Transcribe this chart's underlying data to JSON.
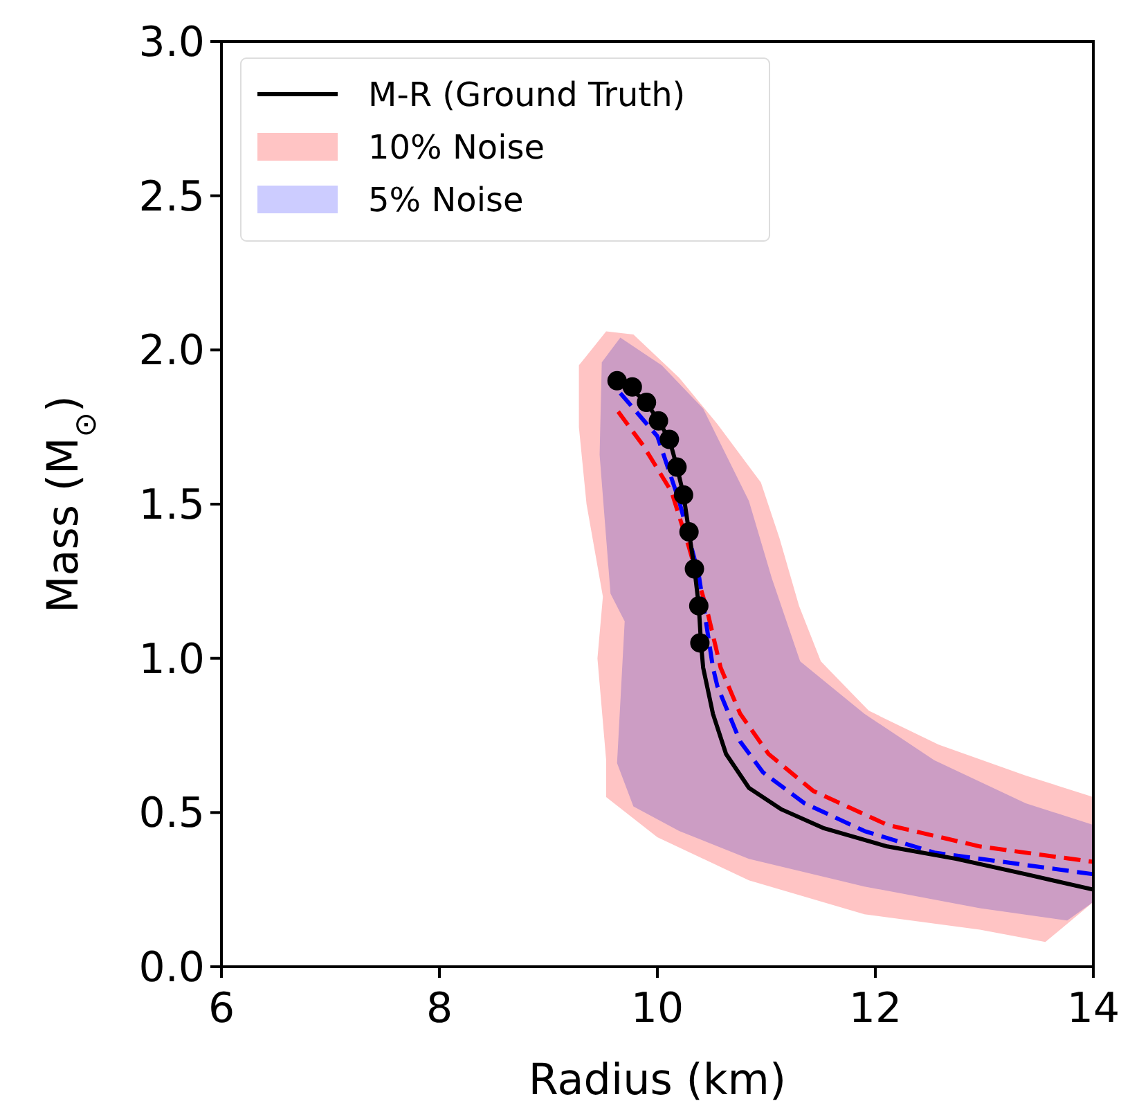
{
  "chart_data": {
    "type": "line",
    "xlabel": "Radius (km)",
    "ylabel": "Mass (M$_{⊙}$)",
    "xlim": [
      6,
      14
    ],
    "ylim": [
      0,
      3
    ],
    "xticks": [
      6,
      8,
      10,
      12,
      14
    ],
    "yticks": [
      {
        "value": 0,
        "label": "0.0"
      },
      {
        "value": 0.5,
        "label": "0.5"
      },
      {
        "value": 1,
        "label": "1.0"
      },
      {
        "value": 1.5,
        "label": "1.5"
      },
      {
        "value": 2,
        "label": "2.0"
      },
      {
        "value": 2.5,
        "label": "2.5"
      },
      {
        "value": 3,
        "label": "3.0"
      }
    ],
    "grid": false,
    "legend": "top left",
    "series": [
      {
        "name": "10% Noise",
        "type": "area",
        "color": "#ffc4c4",
        "x": [
          9.53,
          9.78,
          10.2,
          10.55,
          10.95,
          11.12,
          11.3,
          11.5,
          11.94,
          12.58,
          13.38,
          14,
          14,
          13.56,
          12.96,
          11.9,
          10.84,
          10.0,
          9.53,
          9.53,
          9.45,
          9.5,
          9.35,
          9.28,
          9.28
        ],
        "values": [
          2.06,
          2.05,
          1.91,
          1.76,
          1.57,
          1.39,
          1.17,
          0.99,
          0.83,
          0.72,
          0.62,
          0.55,
          0.21,
          0.08,
          0.12,
          0.17,
          0.28,
          0.42,
          0.55,
          0.67,
          1.0,
          1.2,
          1.5,
          1.75,
          1.95
        ]
      },
      {
        "name": "5% Noise",
        "type": "area",
        "color": "#ccccff",
        "x": [
          9.66,
          10.04,
          10.42,
          10.84,
          11.05,
          11.31,
          11.9,
          12.54,
          13.38,
          14,
          14,
          13.76,
          12.96,
          11.9,
          10.84,
          10.2,
          9.78,
          9.63,
          9.7,
          9.57,
          9.47,
          9.49
        ],
        "values": [
          2.04,
          1.95,
          1.81,
          1.51,
          1.26,
          0.99,
          0.82,
          0.67,
          0.53,
          0.46,
          0.21,
          0.15,
          0.19,
          0.26,
          0.35,
          0.44,
          0.52,
          0.66,
          1.12,
          1.21,
          1.66,
          1.96
        ]
      },
      {
        "color": "#ff0000",
        "line_style": "dashed",
        "marker": "none",
        "x": [
          9.64,
          9.87,
          10.13,
          10.29,
          10.46,
          10.58,
          10.76,
          11.02,
          11.43,
          12.11,
          12.96,
          14.0
        ],
        "values": [
          1.8,
          1.69,
          1.54,
          1.36,
          1.15,
          0.97,
          0.82,
          0.69,
          0.57,
          0.46,
          0.39,
          0.34
        ]
      },
      {
        "color": "#0000ff",
        "line_style": "dashed",
        "marker": "none",
        "x": [
          9.66,
          10.0,
          10.2,
          10.38,
          10.51,
          10.55,
          10.76,
          10.97,
          11.35,
          11.9,
          12.54,
          13.38,
          14.0
        ],
        "values": [
          1.86,
          1.72,
          1.51,
          1.27,
          0.97,
          0.91,
          0.73,
          0.63,
          0.53,
          0.44,
          0.37,
          0.33,
          0.3
        ]
      },
      {
        "name": "M-R (Ground Truth)",
        "color": "#000000",
        "line_style": "solid",
        "marker": "none",
        "x": [
          9.63,
          9.77,
          9.9,
          10.01,
          10.11,
          10.18,
          10.24,
          10.29,
          10.34,
          10.38,
          10.4,
          10.42,
          10.51,
          10.63,
          10.84,
          11.14,
          11.52,
          12.11,
          12.74,
          13.38,
          14.0
        ],
        "values": [
          1.9,
          1.87,
          1.83,
          1.77,
          1.71,
          1.62,
          1.53,
          1.41,
          1.29,
          1.17,
          1.05,
          0.97,
          0.82,
          0.69,
          0.58,
          0.51,
          0.45,
          0.39,
          0.35,
          0.3,
          0.25
        ]
      },
      {
        "type": "scatter",
        "color": "#000000",
        "marker": "circle",
        "x": [
          9.63,
          9.77,
          9.9,
          10.01,
          10.11,
          10.18,
          10.24,
          10.29,
          10.34,
          10.38,
          10.39
        ],
        "values": [
          1.9,
          1.88,
          1.83,
          1.77,
          1.71,
          1.62,
          1.53,
          1.41,
          1.29,
          1.17,
          1.05
        ]
      }
    ]
  }
}
